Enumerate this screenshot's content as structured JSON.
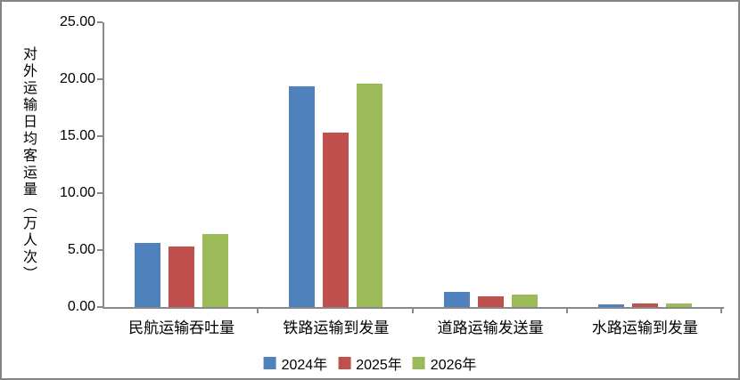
{
  "chart_data": {
    "type": "bar",
    "title": "",
    "ylabel": "对外运输日均客运量（万人次）",
    "xlabel": "",
    "categories": [
      "民航运输吞吐量",
      "铁路运输到发量",
      "道路运输发送量",
      "水路运输到发量"
    ],
    "series": [
      {
        "name": "2024年",
        "color": "#4F81BD",
        "values": [
          5.6,
          19.4,
          1.3,
          0.2
        ]
      },
      {
        "name": "2025年",
        "color": "#C0504D",
        "values": [
          5.3,
          15.3,
          0.9,
          0.35
        ]
      },
      {
        "name": "2026年",
        "color": "#9BBB59",
        "values": [
          6.4,
          19.6,
          1.1,
          0.3
        ]
      }
    ],
    "ylim": [
      0,
      25
    ],
    "ytick_step": 5,
    "yticks": [
      "0.00",
      "5.00",
      "10.00",
      "15.00",
      "20.00",
      "25.00"
    ],
    "grid": false,
    "legend_position": "bottom",
    "axis_color": "#898989",
    "text_color": "#000000"
  }
}
